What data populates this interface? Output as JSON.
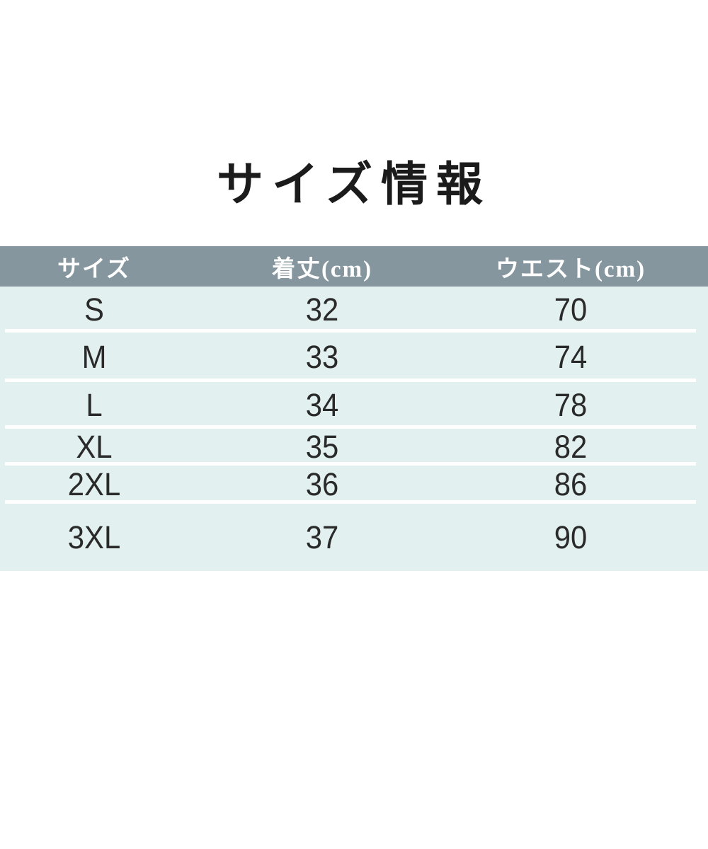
{
  "title": {
    "text": "サイズ情報",
    "color": "#1b1b1b"
  },
  "table": {
    "header": {
      "columns": [
        "サイズ",
        "着丈(cm)",
        "ウエスト(cm)"
      ],
      "bg_color": "#85969e",
      "text_color": "#ffffff"
    },
    "body": {
      "bg_color": "#e2f1f0",
      "text_color": "#2a2a2a",
      "divider_color": "#ffffff"
    },
    "rows": [
      {
        "size": "S",
        "length": "32",
        "waist": "70"
      },
      {
        "size": "M",
        "length": "33",
        "waist": "74"
      },
      {
        "size": "L",
        "length": "34",
        "waist": "78"
      },
      {
        "size": "XL",
        "length": "35",
        "waist": "82"
      },
      {
        "size": "2XL",
        "length": "36",
        "waist": "86"
      },
      {
        "size": "3XL",
        "length": "37",
        "waist": "90"
      }
    ]
  },
  "chart_data": {
    "type": "table",
    "title": "サイズ情報",
    "columns": [
      "サイズ",
      "着丈(cm)",
      "ウエスト(cm)"
    ],
    "rows": [
      [
        "S",
        32,
        70
      ],
      [
        "M",
        33,
        74
      ],
      [
        "L",
        34,
        78
      ],
      [
        "XL",
        35,
        82
      ],
      [
        "2XL",
        36,
        86
      ],
      [
        "3XL",
        37,
        90
      ]
    ]
  }
}
